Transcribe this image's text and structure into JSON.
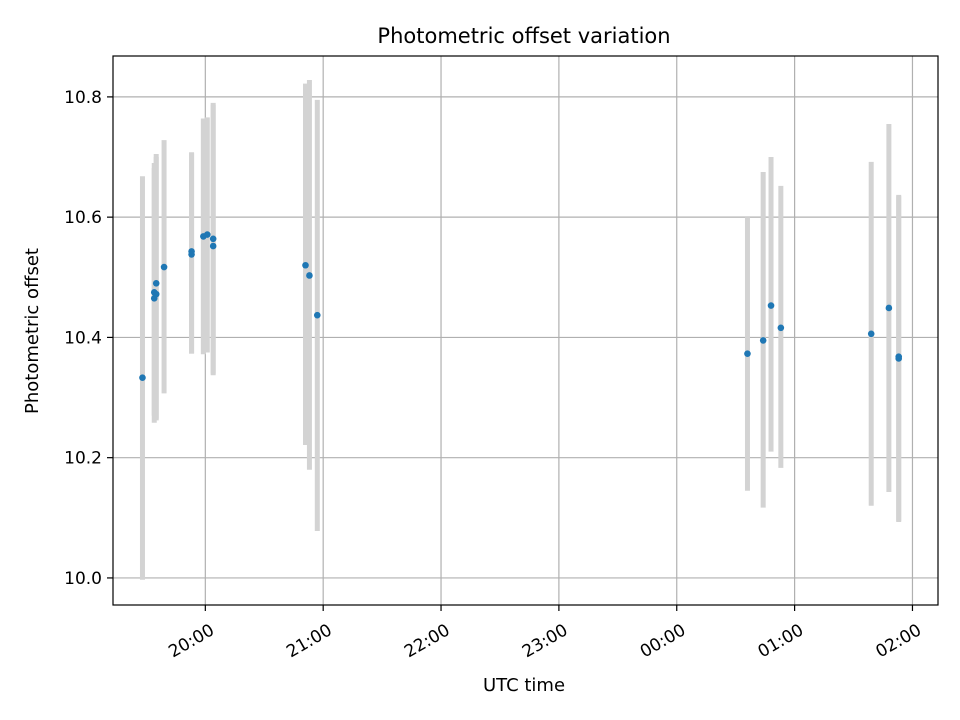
{
  "chart_data": {
    "type": "scatter",
    "title": "Photometric offset variation",
    "xlabel": "UTC time",
    "ylabel": "Photometric offset",
    "x_axis_type": "time",
    "xlim": [
      "19:13",
      "02:13"
    ],
    "ylim": [
      9.955,
      10.868
    ],
    "yticks": [
      10.0,
      10.2,
      10.4,
      10.6,
      10.8
    ],
    "ytick_labels": [
      "10.0",
      "10.2",
      "10.4",
      "10.6",
      "10.8"
    ],
    "xticks": [
      "20:00",
      "21:00",
      "22:00",
      "23:00",
      "00:00",
      "01:00",
      "02:00"
    ],
    "xtick_labels": [
      "20:00",
      "21:00",
      "22:00",
      "23:00",
      "00:00",
      "01:00",
      "02:00"
    ],
    "grid": true,
    "point_color": "#1f77b4",
    "errorbar_color": "#d3d3d3",
    "points": [
      {
        "x": "19:28",
        "y": 10.333,
        "yerr_low": 9.997,
        "yerr_high": 10.668
      },
      {
        "x": "19:34",
        "y": 10.465,
        "yerr_low": 10.258,
        "yerr_high": 10.682
      },
      {
        "x": "19:34",
        "y": 10.475,
        "yerr_low": 10.27,
        "yerr_high": 10.69
      },
      {
        "x": "19:35",
        "y": 10.49,
        "yerr_low": 10.262,
        "yerr_high": 10.705
      },
      {
        "x": "19:35",
        "y": 10.472,
        "yerr_low": 10.265,
        "yerr_high": 10.7
      },
      {
        "x": "19:39",
        "y": 10.517,
        "yerr_low": 10.307,
        "yerr_high": 10.728
      },
      {
        "x": "19:53",
        "y": 10.543,
        "yerr_low": 10.373,
        "yerr_high": 10.708
      },
      {
        "x": "19:53",
        "y": 10.538,
        "yerr_low": 10.373,
        "yerr_high": 10.706
      },
      {
        "x": "19:59",
        "y": 10.568,
        "yerr_low": 10.372,
        "yerr_high": 10.764
      },
      {
        "x": "20:01",
        "y": 10.571,
        "yerr_low": 10.375,
        "yerr_high": 10.766
      },
      {
        "x": "20:04",
        "y": 10.564,
        "yerr_low": 10.337,
        "yerr_high": 10.79
      },
      {
        "x": "20:04",
        "y": 10.552,
        "yerr_low": 10.34,
        "yerr_high": 10.787
      },
      {
        "x": "20:51",
        "y": 10.52,
        "yerr_low": 10.221,
        "yerr_high": 10.822
      },
      {
        "x": "20:53",
        "y": 10.503,
        "yerr_low": 10.18,
        "yerr_high": 10.828
      },
      {
        "x": "20:57",
        "y": 10.437,
        "yerr_low": 10.078,
        "yerr_high": 10.795
      },
      {
        "x": "00:36",
        "y": 10.373,
        "yerr_low": 10.145,
        "yerr_high": 10.6
      },
      {
        "x": "00:44",
        "y": 10.395,
        "yerr_low": 10.117,
        "yerr_high": 10.675
      },
      {
        "x": "00:48",
        "y": 10.453,
        "yerr_low": 10.21,
        "yerr_high": 10.7
      },
      {
        "x": "00:53",
        "y": 10.416,
        "yerr_low": 10.183,
        "yerr_high": 10.652
      },
      {
        "x": "01:39",
        "y": 10.406,
        "yerr_low": 10.12,
        "yerr_high": 10.692
      },
      {
        "x": "01:48",
        "y": 10.449,
        "yerr_low": 10.143,
        "yerr_high": 10.755
      },
      {
        "x": "01:53",
        "y": 10.368,
        "yerr_low": 10.095,
        "yerr_high": 10.637
      },
      {
        "x": "01:53",
        "y": 10.365,
        "yerr_low": 10.093,
        "yerr_high": 10.635
      }
    ]
  }
}
